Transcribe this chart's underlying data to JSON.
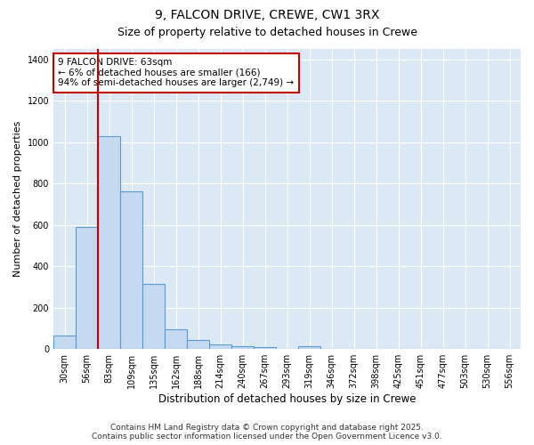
{
  "title_line1": "9, FALCON DRIVE, CREWE, CW1 3RX",
  "title_line2": "Size of property relative to detached houses in Crewe",
  "xlabel": "Distribution of detached houses by size in Crewe",
  "ylabel": "Number of detached properties",
  "bar_labels": [
    "30sqm",
    "56sqm",
    "83sqm",
    "109sqm",
    "135sqm",
    "162sqm",
    "188sqm",
    "214sqm",
    "240sqm",
    "267sqm",
    "293sqm",
    "319sqm",
    "346sqm",
    "372sqm",
    "398sqm",
    "425sqm",
    "451sqm",
    "477sqm",
    "503sqm",
    "530sqm",
    "556sqm"
  ],
  "bar_values": [
    65,
    590,
    1030,
    760,
    315,
    95,
    42,
    22,
    12,
    8,
    3,
    12,
    0,
    0,
    0,
    0,
    0,
    0,
    0,
    0,
    0
  ],
  "bar_color": "#c5d9f0",
  "bar_edge_color": "#5b9bd5",
  "vline_x_pos": 1.5,
  "vline_color": "#c00000",
  "annotation_text": "9 FALCON DRIVE: 63sqm\n← 6% of detached houses are smaller (166)\n94% of semi-detached houses are larger (2,749) →",
  "annotation_box_facecolor": "#ffffff",
  "annotation_box_edgecolor": "#c00000",
  "ylim": [
    0,
    1450
  ],
  "yticks": [
    0,
    200,
    400,
    600,
    800,
    1000,
    1200,
    1400
  ],
  "plot_bg_color": "#dce9f5",
  "fig_bg_color": "#ffffff",
  "grid_color": "#ffffff",
  "footer_line1": "Contains HM Land Registry data © Crown copyright and database right 2025.",
  "footer_line2": "Contains public sector information licensed under the Open Government Licence v3.0.",
  "title_fontsize": 10,
  "subtitle_fontsize": 9,
  "ylabel_fontsize": 8,
  "xlabel_fontsize": 8.5,
  "tick_fontsize": 7,
  "annotation_fontsize": 7.5,
  "footer_fontsize": 6.5
}
